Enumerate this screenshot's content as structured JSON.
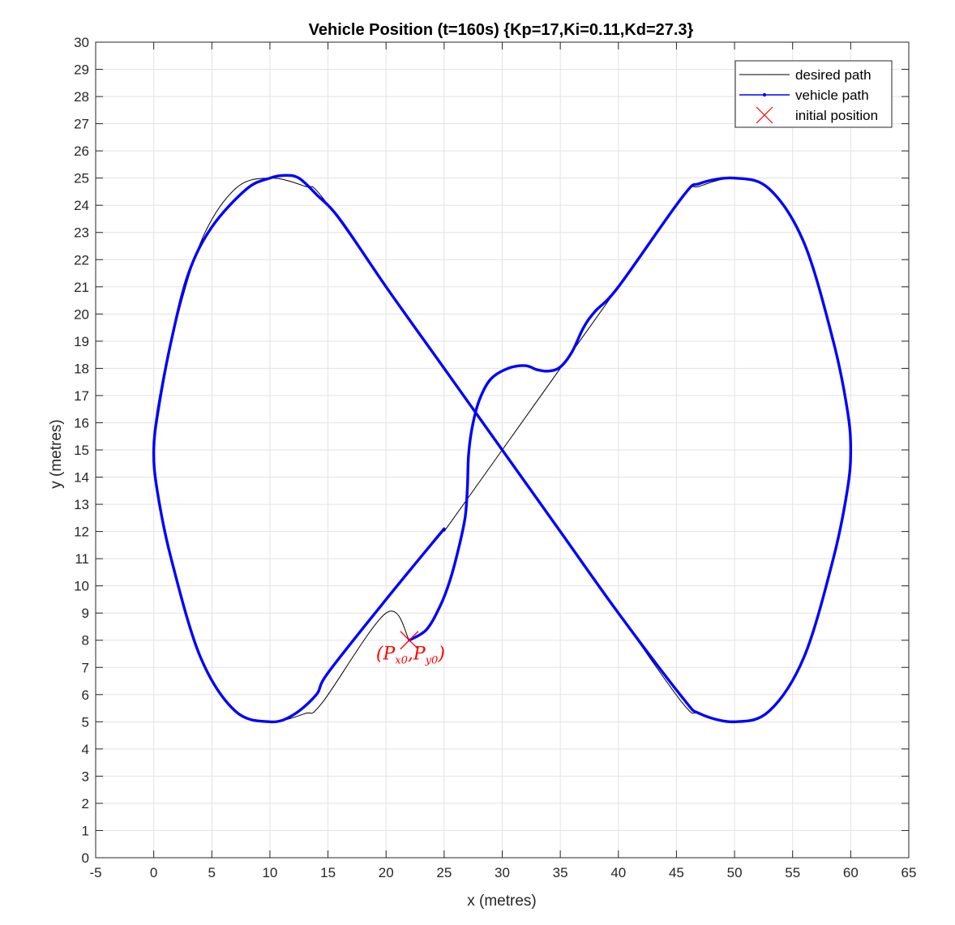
{
  "chart_data": {
    "type": "line",
    "title": "Vehicle Position (t=160s) {Kp=17,Ki=0.11,Kd=27.3}",
    "xlabel": "x (metres)",
    "ylabel": "y (metres)",
    "xlim": [
      -5,
      65
    ],
    "ylim": [
      0,
      30
    ],
    "xticks": [
      -5,
      0,
      5,
      10,
      15,
      20,
      25,
      30,
      35,
      40,
      45,
      50,
      55,
      60,
      65
    ],
    "yticks": [
      0,
      1,
      2,
      3,
      4,
      5,
      6,
      7,
      8,
      9,
      10,
      11,
      12,
      13,
      14,
      15,
      16,
      17,
      18,
      19,
      20,
      21,
      22,
      23,
      24,
      25,
      26,
      27,
      28,
      29,
      30
    ],
    "grid": true,
    "legend_position": "top-right",
    "series": [
      {
        "name": "desired path",
        "color": "#000000",
        "style": "thin-line",
        "points": [
          [
            25,
            12
          ],
          [
            30,
            15
          ],
          [
            35.5,
            18.3
          ],
          [
            40,
            21
          ],
          [
            45.5,
            24.3
          ],
          [
            47,
            24.7
          ],
          [
            50,
            25
          ],
          [
            53,
            24.6
          ],
          [
            56,
            22.6
          ],
          [
            58.5,
            19
          ],
          [
            59.7,
            16.5
          ],
          [
            60,
            15
          ],
          [
            59.7,
            13.5
          ],
          [
            58.5,
            11
          ],
          [
            56,
            7.4
          ],
          [
            53,
            5.4
          ],
          [
            50,
            5
          ],
          [
            47,
            5.3
          ],
          [
            45.5,
            5.7
          ],
          [
            40,
            9
          ],
          [
            35,
            12
          ],
          [
            30,
            15
          ],
          [
            25,
            18
          ],
          [
            20,
            21
          ],
          [
            14.5,
            24.3
          ],
          [
            13,
            24.7
          ],
          [
            10,
            25
          ],
          [
            7,
            24.6
          ],
          [
            4,
            22.6
          ],
          [
            1.5,
            19
          ],
          [
            0.3,
            16.5
          ],
          [
            0,
            15
          ],
          [
            0.3,
            13.5
          ],
          [
            1.5,
            11
          ],
          [
            4,
            7.4
          ],
          [
            7,
            5.4
          ],
          [
            10,
            5
          ],
          [
            13,
            5.3
          ],
          [
            14.5,
            5.7
          ],
          [
            20,
            9
          ],
          [
            22,
            8
          ]
        ]
      },
      {
        "name": "vehicle path",
        "color": "#0000ff",
        "style": "thick-dotted-line",
        "points": [
          [
            22,
            8
          ],
          [
            23.5,
            8.4
          ],
          [
            24.7,
            9.3
          ],
          [
            25.5,
            10.2
          ],
          [
            26.2,
            11.3
          ],
          [
            26.8,
            12.5
          ],
          [
            27.0,
            13.6
          ],
          [
            27.1,
            14.8
          ],
          [
            27.4,
            15.8
          ],
          [
            28.0,
            16.8
          ],
          [
            29.0,
            17.6
          ],
          [
            30.5,
            18.0
          ],
          [
            32,
            18.1
          ],
          [
            33,
            17.95
          ],
          [
            34,
            17.9
          ],
          [
            35,
            18.05
          ],
          [
            36,
            18.6
          ],
          [
            37,
            19.5
          ],
          [
            38,
            20.1
          ],
          [
            40,
            21
          ],
          [
            45.5,
            24.3
          ],
          [
            47,
            24.8
          ],
          [
            50,
            25
          ],
          [
            53,
            24.6
          ],
          [
            56,
            22.6
          ],
          [
            58.5,
            19
          ],
          [
            59.7,
            16.5
          ],
          [
            60,
            15
          ],
          [
            59.7,
            13.5
          ],
          [
            58.5,
            11
          ],
          [
            56,
            7.4
          ],
          [
            53,
            5.4
          ],
          [
            50,
            5
          ],
          [
            47,
            5.3
          ],
          [
            45.5,
            5.9
          ],
          [
            40,
            9
          ],
          [
            35,
            12
          ],
          [
            30,
            15
          ],
          [
            25,
            18
          ],
          [
            20,
            21
          ],
          [
            16,
            23.5
          ],
          [
            14,
            24.4
          ],
          [
            12.5,
            25
          ],
          [
            11.3,
            25.1
          ],
          [
            10,
            25
          ],
          [
            8,
            24.6
          ],
          [
            5,
            23.2
          ],
          [
            3,
            21.5
          ],
          [
            1.5,
            19
          ],
          [
            0.4,
            16.5
          ],
          [
            0,
            15
          ],
          [
            0.3,
            13.5
          ],
          [
            1.5,
            11
          ],
          [
            4,
            7.4
          ],
          [
            7,
            5.4
          ],
          [
            10,
            5
          ],
          [
            12,
            5.25
          ],
          [
            14,
            6
          ],
          [
            15,
            6.8
          ],
          [
            20,
            9.5
          ],
          [
            25,
            12.1
          ]
        ]
      }
    ],
    "markers": [
      {
        "name": "initial position",
        "color": "#ff0000",
        "shape": "x",
        "x": 22,
        "y": 8
      }
    ],
    "annotation": {
      "open": "(",
      "p1": "P",
      "s1": "x0",
      "comma": ",",
      "p2": "P",
      "s2": "y0",
      "close": ")",
      "color": "#ff0000",
      "x": 22,
      "y": 8
    }
  },
  "legend": {
    "items": [
      {
        "label": "desired path"
      },
      {
        "label": "vehicle path"
      },
      {
        "label": "initial position"
      }
    ]
  }
}
